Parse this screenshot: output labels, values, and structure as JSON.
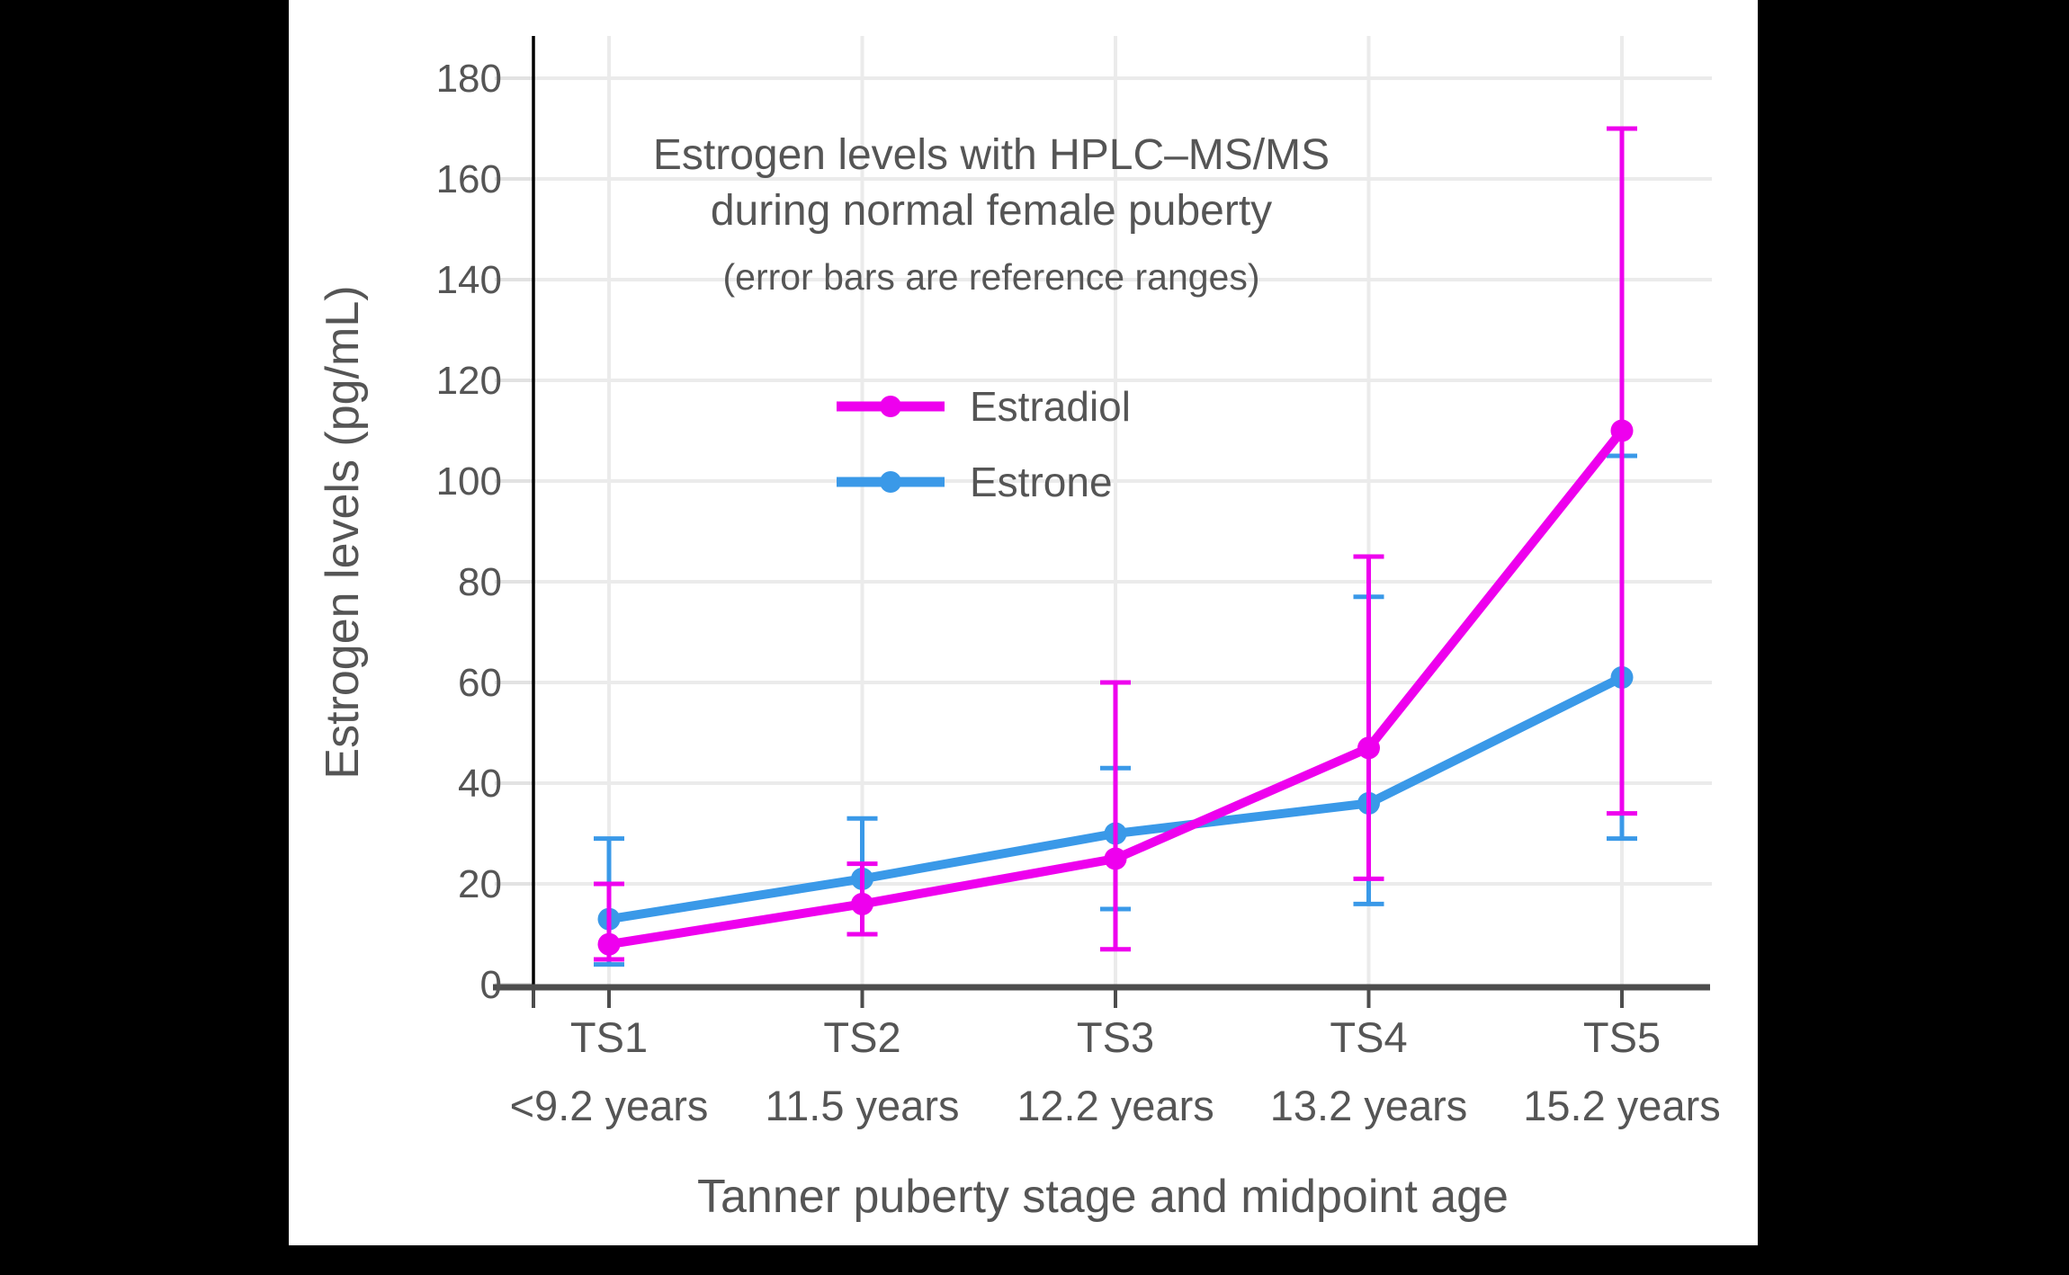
{
  "window": {
    "description": "Line chart figure on white card over black background"
  },
  "colors": {
    "frame_background": "#000000",
    "card_background": "#FFFFFF",
    "grid": "#EBEBEB",
    "y_tick": "#E2E2E2",
    "x_axis_line": "#4D4D4D",
    "y_axis_line": "#000000",
    "text": "#555555"
  },
  "chart_data": {
    "type": "line",
    "title": "Estrogen levels with HPLC–MS/MS",
    "title_line2": "during normal female puberty",
    "subtitle": "(error bars are reference ranges)",
    "xlabel": "Tanner puberty stage and midpoint age",
    "ylabel": "Estrogen levels (pg/mL)",
    "categories": [
      "TS1",
      "TS2",
      "TS3",
      "TS4",
      "TS5"
    ],
    "category_sublabels": [
      "<9.2 years",
      "11.5 years",
      "12.2 years",
      "13.2 years",
      "15.2 years"
    ],
    "yticks": [
      0,
      20,
      40,
      60,
      80,
      100,
      120,
      140,
      160,
      180
    ],
    "ylim": [
      0,
      188
    ],
    "grid": true,
    "legend_position": "upper-center",
    "error_bars": "reference ranges",
    "series": [
      {
        "name": "Estradiol",
        "color": "#EE00EE",
        "values": [
          8,
          16,
          25,
          47,
          110
        ],
        "error_low": [
          5,
          10,
          7,
          21,
          34
        ],
        "error_high": [
          20,
          24,
          60,
          85,
          170
        ]
      },
      {
        "name": "Estrone",
        "color": "#3A99E8",
        "values": [
          13,
          21,
          30,
          36,
          61
        ],
        "error_low": [
          4,
          10,
          15,
          16,
          29
        ],
        "error_high": [
          29,
          33,
          43,
          77,
          105
        ]
      }
    ]
  }
}
